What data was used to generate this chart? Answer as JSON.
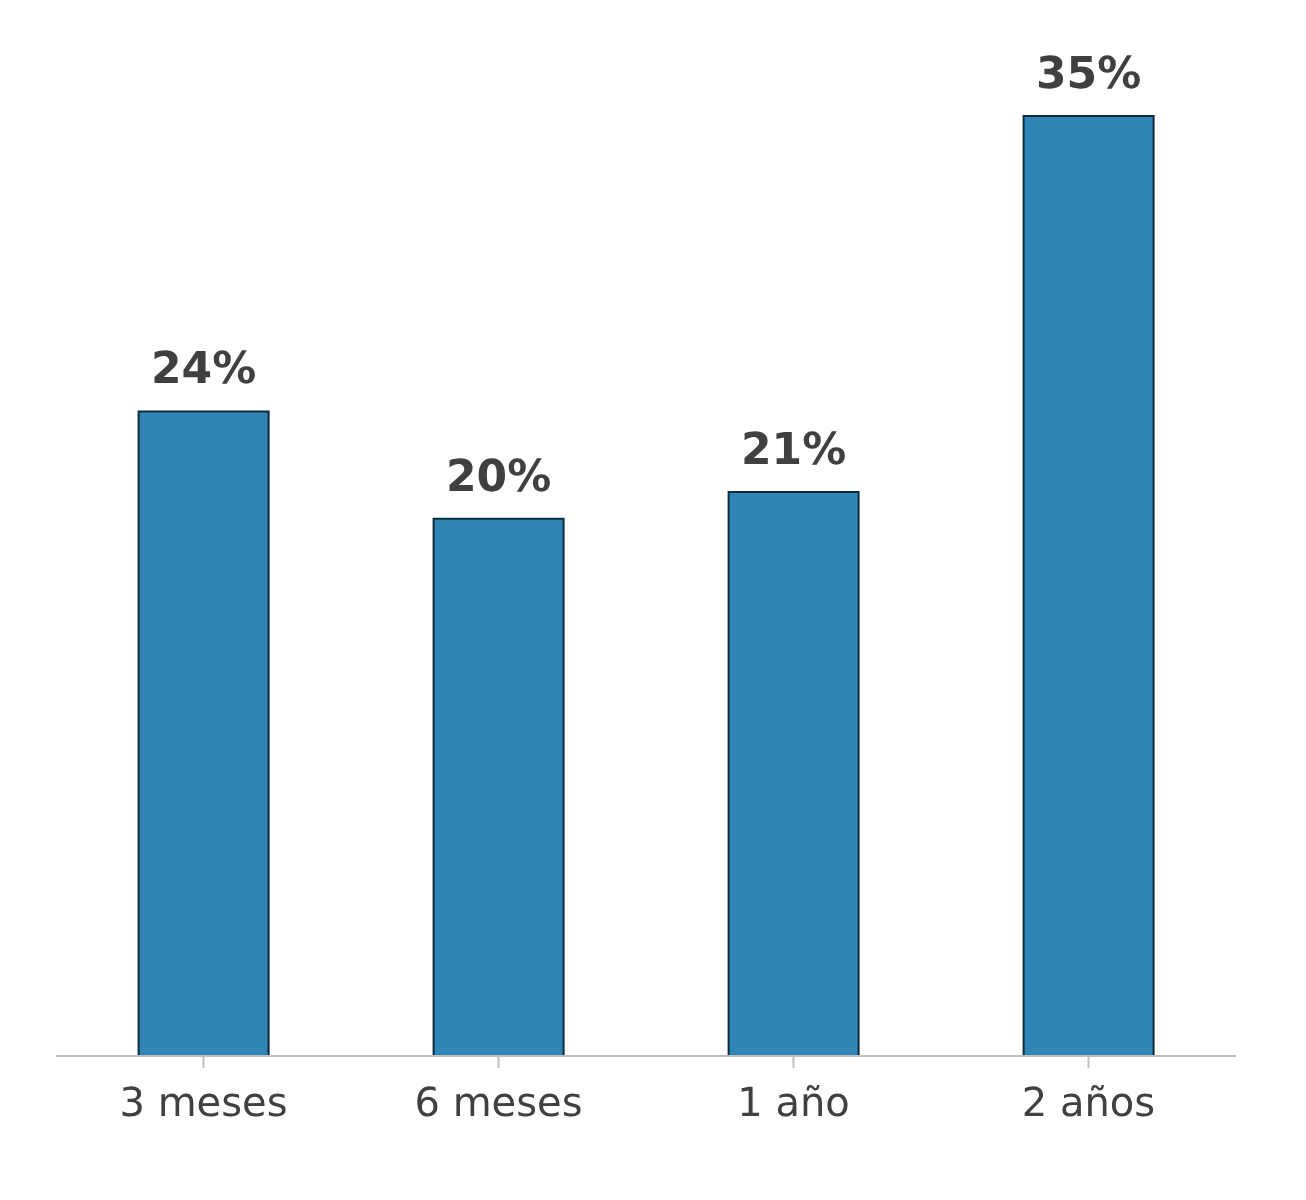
{
  "chart_data": {
    "type": "bar",
    "categories": [
      "3 meses",
      "6 meses",
      "1 año",
      "2 años"
    ],
    "values": [
      24,
      20,
      21,
      35
    ],
    "value_labels": [
      "24%",
      "20%",
      "21%",
      "35%"
    ],
    "color": "#2f86b6",
    "grid": false,
    "legend": false
  }
}
